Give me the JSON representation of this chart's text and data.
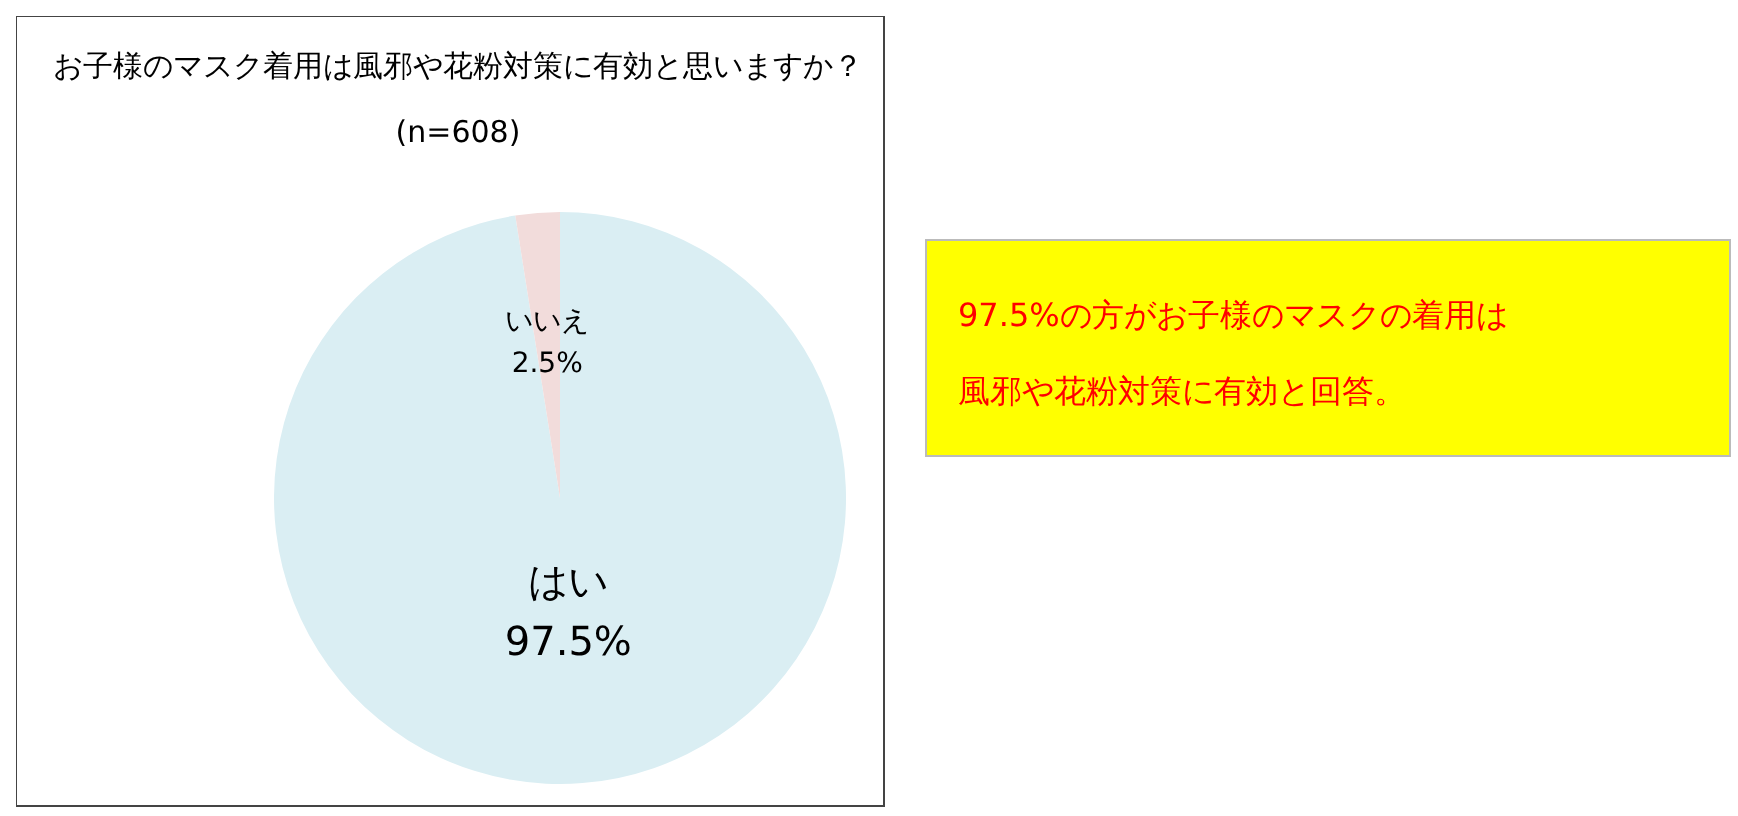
{
  "chart_data": {
    "type": "pie",
    "title": "お子様のマスク着用は風邪や花粉対策に有効と思いますか？",
    "subtitle": "(n=608)",
    "categories": [
      "はい",
      "いいえ"
    ],
    "values": [
      97.5,
      2.5
    ],
    "value_labels": [
      "97.5%",
      "2.5%"
    ],
    "colors": [
      "#daeef3",
      "#f2dcdb"
    ],
    "annotations": [
      "97.5%の方がお子様のマスクの着用は",
      "風邪や花粉対策に有効と回答。"
    ]
  }
}
